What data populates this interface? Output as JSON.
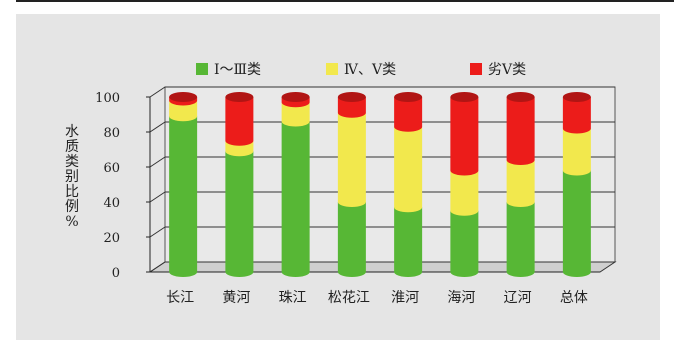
{
  "chart_data": {
    "type": "bar",
    "stacked": true,
    "title": "",
    "xlabel": "",
    "ylabel": "水质类别比例%",
    "ylabel_lines": [
      "水",
      "质",
      "类",
      "别",
      "比",
      "例",
      "%"
    ],
    "ylim": [
      0,
      100
    ],
    "yticks": [
      "0",
      "20",
      "40",
      "60",
      "80",
      "100"
    ],
    "grid": true,
    "legend_position": "top",
    "categories": [
      "长江",
      "黄河",
      "珠江",
      "松花江",
      "淮河",
      "海河",
      "辽河",
      "总体"
    ],
    "series": [
      {
        "name": "Ⅰ～Ⅲ类",
        "color": "#57b735",
        "values": [
          89,
          69,
          86,
          40,
          37,
          35,
          40,
          58
        ]
      },
      {
        "name": "Ⅳ、Ⅴ类",
        "color": "#f2e84d",
        "values": [
          9,
          6,
          11,
          51,
          46,
          23,
          24,
          24
        ]
      },
      {
        "name": "劣Ⅴ类",
        "color": "#ec1c1a",
        "values": [
          2,
          25,
          3,
          9,
          17,
          42,
          36,
          18
        ]
      }
    ]
  }
}
